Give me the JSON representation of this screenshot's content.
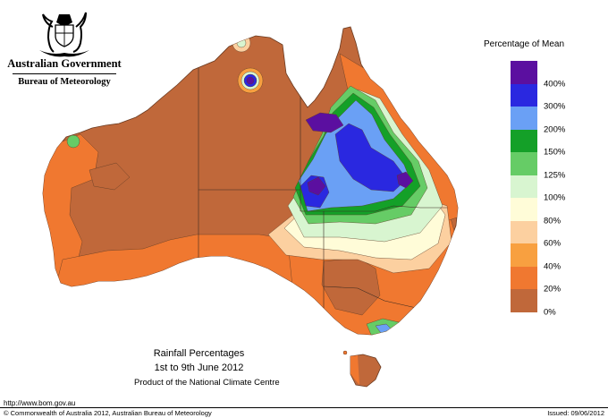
{
  "header": {
    "agency": "Australian Government",
    "bureau": "Bureau of Meteorology",
    "crest": "commonwealth-coat-of-arms"
  },
  "legend": {
    "title": "Percentage of Mean",
    "items": [
      {
        "label": "400%",
        "color": "#5b0fa0"
      },
      {
        "label": "300%",
        "color": "#2a28e0"
      },
      {
        "label": "200%",
        "color": "#6aa0f5"
      },
      {
        "label": "150%",
        "color": "#14a028"
      },
      {
        "label": "125%",
        "color": "#66cc66"
      },
      {
        "label": "100%",
        "color": "#d8f5d0"
      },
      {
        "label": "80%",
        "color": "#fffcd8"
      },
      {
        "label": "60%",
        "color": "#fcd0a0"
      },
      {
        "label": "40%",
        "color": "#f8a040"
      },
      {
        "label": "20%",
        "color": "#f07830"
      },
      {
        "label": "0%",
        "color": "#c0683a"
      }
    ],
    "base_color": "#c0683a"
  },
  "caption": {
    "title": "Rainfall Percentages",
    "dates": "1st to 9th June 2012",
    "product": "Product of the National Climate Centre"
  },
  "footer": {
    "url": "http://www.bom.gov.au",
    "copyright": "© Commonwealth of Australia 2012, Australian Bureau of Meteorology",
    "issued": "Issued: 09/06/2012"
  }
}
